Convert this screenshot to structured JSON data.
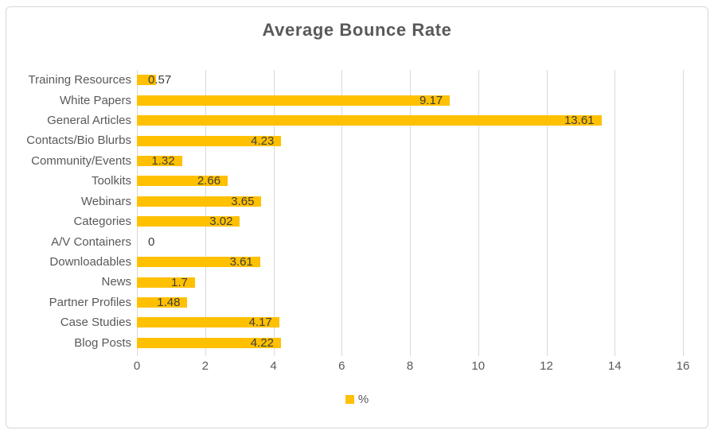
{
  "title": "Average Bounce Rate",
  "legend": {
    "label": "%"
  },
  "colors": {
    "bar": "#FFC000",
    "title_text": "#595959",
    "axis_text": "#595959",
    "value_label_text": "#3D3D3D",
    "gridline": "#D9D9D9",
    "border": "#D7D7D7"
  },
  "chart_data": {
    "type": "bar",
    "orientation": "horizontal",
    "title": "Average Bounce Rate",
    "xlabel": "",
    "ylabel": "",
    "categories": [
      "Training Resources",
      "White Papers",
      "General Articles",
      "Contacts/Bio Blurbs",
      "Community/Events",
      "Toolkits",
      "Webinars",
      "Categories",
      "A/V Containers",
      "Downloadables",
      "News",
      "Partner Profiles",
      "Case Studies",
      "Blog Posts"
    ],
    "values": [
      0.57,
      9.17,
      13.61,
      4.23,
      1.32,
      2.66,
      3.65,
      3.02,
      0,
      3.61,
      1.7,
      1.48,
      4.17,
      4.22
    ],
    "value_labels": [
      "0.57",
      "9.17",
      "13.61",
      "4.23",
      "1.32",
      "2.66",
      "3.65",
      "3.02",
      "0",
      "3.61",
      "1.7",
      "1.48",
      "4.17",
      "4.22"
    ],
    "xlim": [
      0,
      16
    ],
    "x_ticks": [
      0,
      2,
      4,
      6,
      8,
      10,
      12,
      14,
      16
    ],
    "grid": true,
    "legend_entries": [
      "%"
    ],
    "legend_position": "bottom"
  }
}
